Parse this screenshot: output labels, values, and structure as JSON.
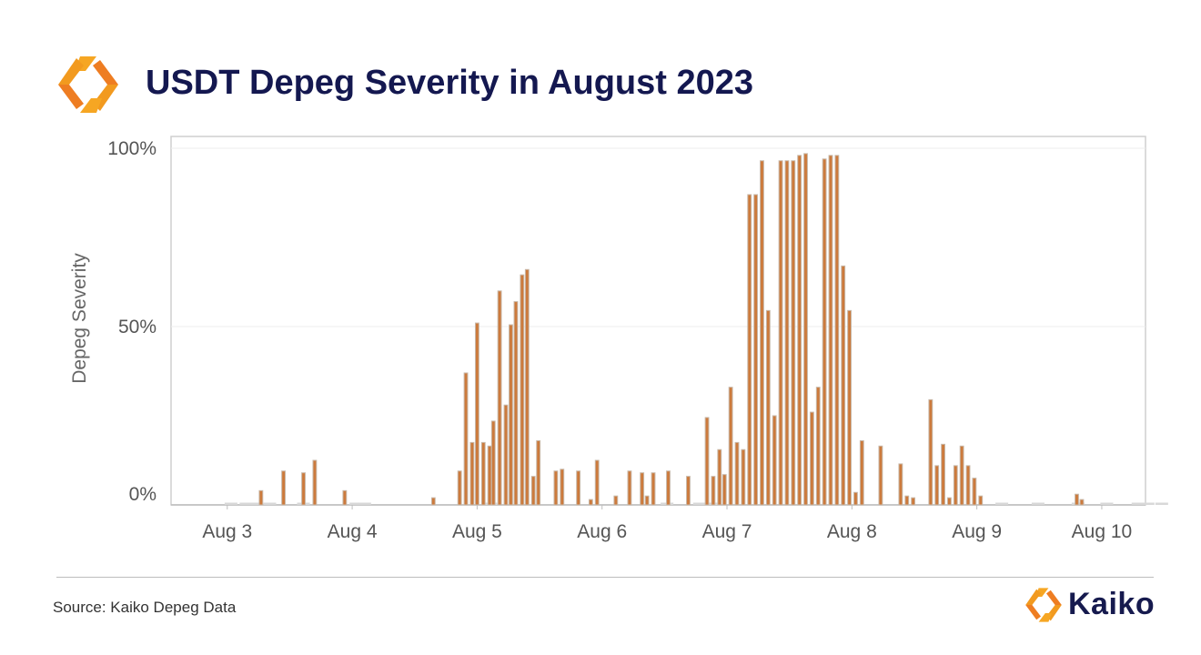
{
  "header": {
    "title": "USDT Depeg Severity in August 2023",
    "logo_icon": "kaiko-logo-icon"
  },
  "footer": {
    "source": "Source: Kaiko Depeg Data",
    "brand": "Kaiko"
  },
  "colors": {
    "bar_fill": "#cc7a3c",
    "bar_edge": "#c8b8a8",
    "zero_marker": "#d8d8d8",
    "title": "#141850",
    "logo_orange": "#f29a1f",
    "logo_orange_dark": "#e8691e"
  },
  "chart_data": {
    "type": "bar",
    "title": "USDT Depeg Severity in August 2023",
    "xlabel": "",
    "ylabel": "Depeg Severity",
    "ylim": [
      0,
      100
    ],
    "xlim": [
      -0.45,
      7.35
    ],
    "yticks": [
      {
        "value": 0,
        "label": "0%"
      },
      {
        "value": 50,
        "label": "50%"
      },
      {
        "value": 100,
        "label": "100%"
      }
    ],
    "xticks": [
      {
        "value": 0,
        "label": "Aug 3"
      },
      {
        "value": 1,
        "label": "Aug 4"
      },
      {
        "value": 2,
        "label": "Aug 5"
      },
      {
        "value": 3,
        "label": "Aug 6"
      },
      {
        "value": 4,
        "label": "Aug 7"
      },
      {
        "value": 5,
        "label": "Aug 8"
      },
      {
        "value": 6,
        "label": "Aug 9"
      },
      {
        "value": 7,
        "label": "Aug 10"
      }
    ],
    "grid": true,
    "bar_width_days": 0.028,
    "series": [
      {
        "name": "Depeg Severity",
        "points": [
          [
            0.27,
            4
          ],
          [
            0.45,
            9.5
          ],
          [
            0.61,
            9
          ],
          [
            0.7,
            12.5
          ],
          [
            0.94,
            4
          ],
          [
            1.65,
            2
          ],
          [
            1.86,
            9.5
          ],
          [
            1.91,
            37
          ],
          [
            1.96,
            17.5
          ],
          [
            2.0,
            51
          ],
          [
            2.05,
            17.5
          ],
          [
            2.1,
            16.5
          ],
          [
            2.13,
            23.5
          ],
          [
            2.18,
            60
          ],
          [
            2.23,
            28
          ],
          [
            2.27,
            50.5
          ],
          [
            2.31,
            57
          ],
          [
            2.36,
            64.5
          ],
          [
            2.4,
            66
          ],
          [
            2.45,
            8
          ],
          [
            2.49,
            18
          ],
          [
            2.63,
            9.5
          ],
          [
            2.68,
            10
          ],
          [
            2.81,
            9.5
          ],
          [
            2.91,
            1.5
          ],
          [
            2.96,
            12.5
          ],
          [
            3.11,
            2.5
          ],
          [
            3.22,
            9.5
          ],
          [
            3.32,
            9
          ],
          [
            3.36,
            2.5
          ],
          [
            3.41,
            9
          ],
          [
            3.53,
            9.5
          ],
          [
            3.69,
            8
          ],
          [
            3.84,
            24.5
          ],
          [
            3.89,
            8
          ],
          [
            3.94,
            15.5
          ],
          [
            3.98,
            8.5
          ],
          [
            4.03,
            33
          ],
          [
            4.08,
            17.5
          ],
          [
            4.13,
            15.5
          ],
          [
            4.18,
            87
          ],
          [
            4.23,
            87
          ],
          [
            4.28,
            96.5
          ],
          [
            4.33,
            54.5
          ],
          [
            4.38,
            25
          ],
          [
            4.43,
            96.5
          ],
          [
            4.48,
            96.5
          ],
          [
            4.53,
            96.5
          ],
          [
            4.58,
            98
          ],
          [
            4.63,
            98.5
          ],
          [
            4.68,
            26
          ],
          [
            4.73,
            33
          ],
          [
            4.78,
            97
          ],
          [
            4.83,
            98
          ],
          [
            4.88,
            98
          ],
          [
            4.93,
            67
          ],
          [
            4.98,
            54.5
          ],
          [
            5.03,
            3.5
          ],
          [
            5.08,
            18
          ],
          [
            5.23,
            16.5
          ],
          [
            5.39,
            11.5
          ],
          [
            5.44,
            2.5
          ],
          [
            5.49,
            2
          ],
          [
            5.63,
            29.5
          ],
          [
            5.68,
            11
          ],
          [
            5.73,
            17
          ],
          [
            5.78,
            2
          ],
          [
            5.83,
            11
          ],
          [
            5.88,
            16.5
          ],
          [
            5.93,
            11
          ],
          [
            5.98,
            7.5
          ],
          [
            6.03,
            2.5
          ],
          [
            6.8,
            3
          ],
          [
            6.84,
            1.5
          ]
        ]
      }
    ],
    "zero_markers": [
      0.03,
      0.15,
      0.21,
      0.34,
      0.61,
      1.03,
      1.1,
      2.11,
      3.52,
      3.78,
      3.83,
      3.9,
      6.2,
      6.49,
      6.81,
      7.04,
      7.29,
      7.37,
      7.48
    ]
  }
}
